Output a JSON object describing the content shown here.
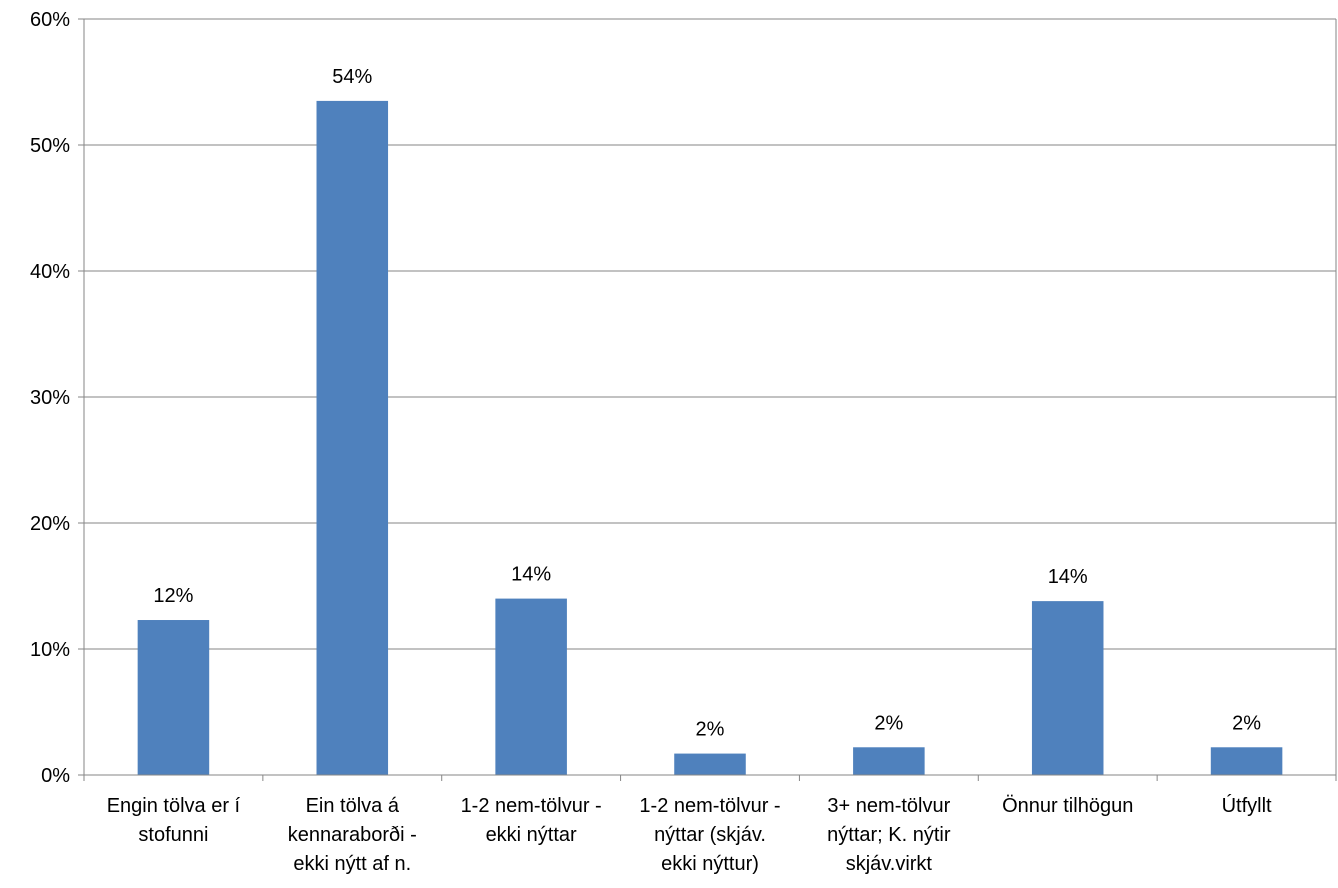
{
  "chart_data": {
    "type": "bar",
    "title": "",
    "xlabel": "",
    "ylabel": "",
    "ylim": [
      0,
      60
    ],
    "yticks": [
      "0%",
      "10%",
      "20%",
      "30%",
      "40%",
      "50%",
      "60%"
    ],
    "grid": true,
    "legend": "none",
    "bar_color": "#4F81BD",
    "categories": [
      [
        "Engin tölva er í",
        "stofunni"
      ],
      [
        "Ein tölva á",
        "kennaraborði -",
        "ekki nýtt af n."
      ],
      [
        "1-2 nem-tölvur -",
        "ekki nýttar"
      ],
      [
        "1-2 nem-tölvur -",
        "nýttar (skjáv.",
        "ekki nýttur)"
      ],
      [
        "3+ nem-tölvur",
        "nýttar; K. nýtir",
        "skjáv.virkt"
      ],
      [
        "Önnur tilhögun"
      ],
      [
        "Útfyllt"
      ]
    ],
    "values": [
      12.3,
      53.5,
      14.0,
      1.7,
      2.2,
      13.8,
      2.2
    ],
    "data_labels": [
      "12%",
      "54%",
      "14%",
      "2%",
      "2%",
      "14%",
      "2%"
    ]
  }
}
